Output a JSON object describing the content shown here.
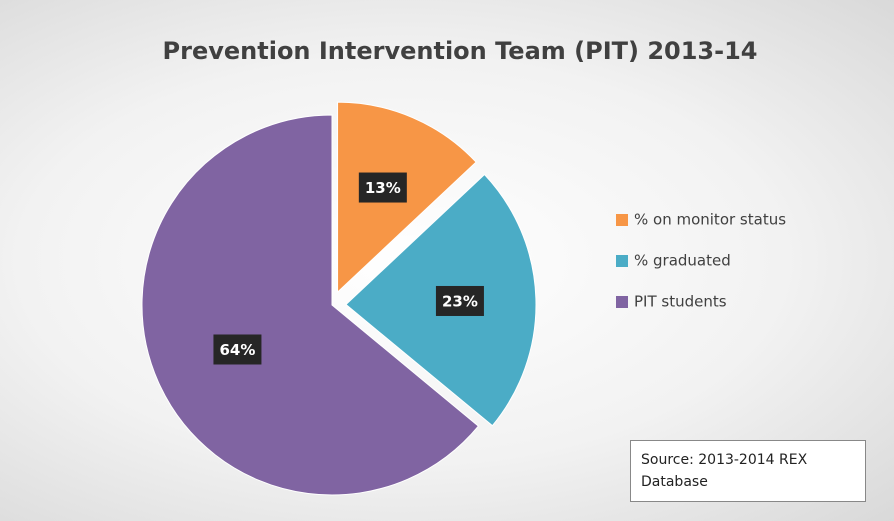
{
  "chart_data": {
    "type": "pie",
    "title": "Prevention Intervention Team (PIT) 2013-14",
    "categories": [
      "% on monitor status",
      "% graduated",
      "PIT students"
    ],
    "values": [
      13,
      23,
      64
    ],
    "value_labels": [
      "13%",
      "23%",
      "64%"
    ],
    "colors": [
      "#f79646",
      "#4bacc6",
      "#8064a2"
    ],
    "legend": "right",
    "annotation": "Source: 2013-2014 REX Database"
  }
}
